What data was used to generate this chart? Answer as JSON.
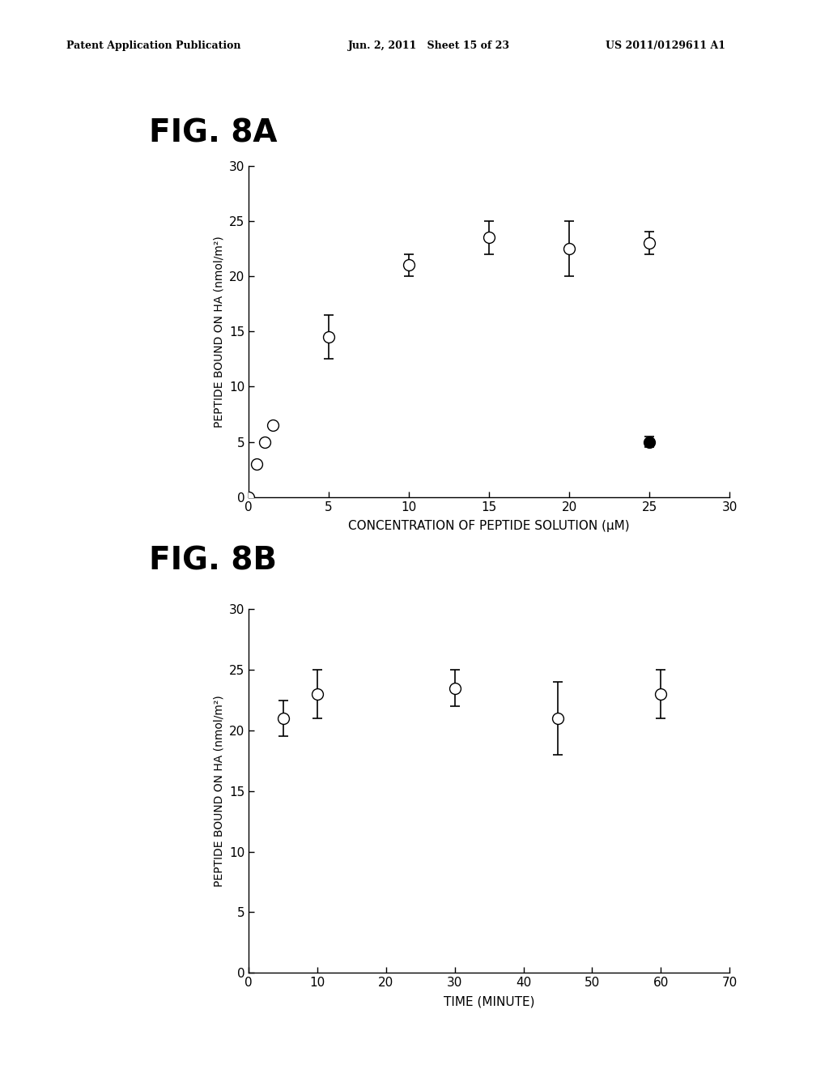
{
  "header_left": "Patent Application Publication",
  "header_mid": "Jun. 2, 2011   Sheet 15 of 23",
  "header_right": "US 2011/0129611 A1",
  "fig8a": {
    "title": "FIG. 8A",
    "xlabel": "CONCENTRATION OF PEPTIDE SOLUTION (μM)",
    "ylabel": "PEPTIDE BOUND ON HA (nmol/m²)",
    "open_x": [
      0,
      0.5,
      1.0,
      1.5,
      5,
      10,
      15,
      20,
      25
    ],
    "open_y": [
      0,
      3.0,
      5.0,
      6.5,
      14.5,
      21.0,
      23.5,
      22.5,
      23.0
    ],
    "open_yerr": [
      0,
      0,
      0,
      0,
      2.0,
      1.0,
      1.5,
      2.5,
      1.0
    ],
    "filled_x": [
      25
    ],
    "filled_y": [
      5.0
    ],
    "filled_yerr": [
      0.5
    ],
    "xlim": [
      0,
      30
    ],
    "ylim": [
      0,
      30
    ],
    "xticks": [
      0,
      5,
      10,
      15,
      20,
      25,
      30
    ],
    "yticks": [
      0,
      5,
      10,
      15,
      20,
      25,
      30
    ]
  },
  "fig8b": {
    "title": "FIG. 8B",
    "xlabel": "TIME (MINUTE)",
    "ylabel": "PEPTIDE BOUND ON HA (nmol/m²)",
    "open_x": [
      5,
      10,
      30,
      45,
      60
    ],
    "open_y": [
      21.0,
      23.0,
      23.5,
      21.0,
      23.0
    ],
    "open_yerr": [
      1.5,
      2.0,
      1.5,
      3.0,
      2.0
    ],
    "xlim": [
      0,
      70
    ],
    "ylim": [
      0,
      30
    ],
    "xticks": [
      0,
      10,
      20,
      30,
      40,
      50,
      60,
      70
    ],
    "yticks": [
      0,
      5,
      10,
      15,
      20,
      25,
      30
    ]
  },
  "background_color": "#ffffff",
  "marker_size": 10,
  "linewidth": 1.2,
  "capsize": 4
}
